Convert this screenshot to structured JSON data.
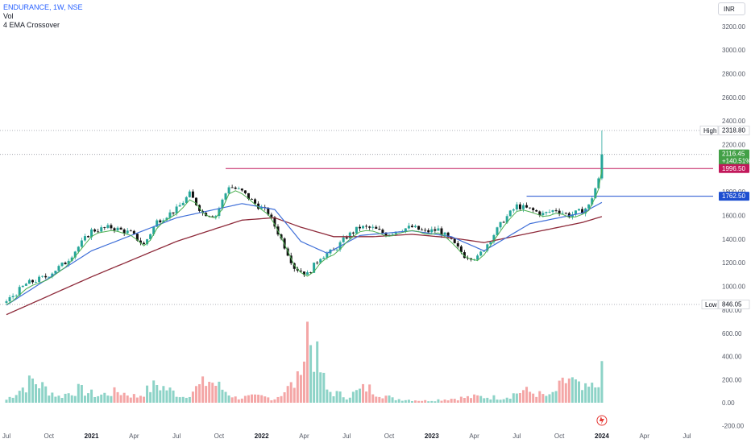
{
  "header": {
    "title": "ENDURANCE, 1W, NSE",
    "indicators": [
      "Vol",
      "4 EMA Crossover"
    ],
    "currency": "INR"
  },
  "colors": {
    "up": "#26a69a",
    "down": "#111111",
    "ema_short": "#4caf50",
    "ema_mid": "#3f6fd8",
    "ema_long": "#8e2a3a",
    "resistance": "#c2185b",
    "support": "#1e4fd0",
    "vol_up": "#8dd3c7",
    "vol_down": "#f4a6a6"
  },
  "chart_data": {
    "type": "candlestick",
    "y_ticks": [
      800,
      1000,
      1200,
      1400,
      1600,
      1800,
      2000,
      2200,
      2400,
      2600,
      2800,
      3000,
      3200
    ],
    "y_tick_labels": [
      "800.00",
      "1000.00",
      "1200.00",
      "1400.00",
      "1600.00",
      "1800.00",
      "2000.00",
      "2200.00",
      "2400.00",
      "2600.00",
      "2800.00",
      "3000.00",
      "3200.00"
    ],
    "vol_ticks": [
      -200,
      0,
      200,
      400,
      600
    ],
    "vol_tick_labels": [
      "-200.00",
      "0.00",
      "200.00",
      "400.00",
      "600.00"
    ],
    "x_labels": [
      {
        "week": 0,
        "label": "Jul"
      },
      {
        "week": 13,
        "label": "Oct"
      },
      {
        "week": 26,
        "label": "2021"
      },
      {
        "week": 39,
        "label": "Apr"
      },
      {
        "week": 52,
        "label": "Jul"
      },
      {
        "week": 65,
        "label": "Oct"
      },
      {
        "week": 78,
        "label": "2022"
      },
      {
        "week": 91,
        "label": "Apr"
      },
      {
        "week": 104,
        "label": "Jul"
      },
      {
        "week": 117,
        "label": "Oct"
      },
      {
        "week": 130,
        "label": "2023"
      },
      {
        "week": 143,
        "label": "Apr"
      },
      {
        "week": 156,
        "label": "Jul"
      },
      {
        "week": 169,
        "label": "Oct"
      },
      {
        "week": 182,
        "label": "2024"
      },
      {
        "week": 195,
        "label": "Apr"
      },
      {
        "week": 208,
        "label": "Jul"
      }
    ],
    "close_keypoints": [
      [
        0,
        870
      ],
      [
        6,
        1020
      ],
      [
        12,
        1080
      ],
      [
        18,
        1200
      ],
      [
        26,
        1470
      ],
      [
        32,
        1500
      ],
      [
        38,
        1450
      ],
      [
        42,
        1350
      ],
      [
        46,
        1550
      ],
      [
        52,
        1650
      ],
      [
        56,
        1780
      ],
      [
        60,
        1620
      ],
      [
        64,
        1600
      ],
      [
        68,
        1850
      ],
      [
        72,
        1800
      ],
      [
        76,
        1700
      ],
      [
        80,
        1620
      ],
      [
        84,
        1400
      ],
      [
        88,
        1160
      ],
      [
        92,
        1100
      ],
      [
        96,
        1250
      ],
      [
        100,
        1300
      ],
      [
        104,
        1420
      ],
      [
        108,
        1500
      ],
      [
        112,
        1490
      ],
      [
        116,
        1440
      ],
      [
        120,
        1480
      ],
      [
        124,
        1500
      ],
      [
        128,
        1460
      ],
      [
        132,
        1480
      ],
      [
        136,
        1380
      ],
      [
        140,
        1260
      ],
      [
        144,
        1240
      ],
      [
        148,
        1400
      ],
      [
        152,
        1560
      ],
      [
        156,
        1680
      ],
      [
        160,
        1650
      ],
      [
        164,
        1610
      ],
      [
        168,
        1650
      ],
      [
        172,
        1600
      ],
      [
        176,
        1640
      ],
      [
        178,
        1680
      ],
      [
        180,
        1830
      ],
      [
        181,
        1900
      ],
      [
        182,
        2116.45
      ]
    ],
    "ema_mid_keypoints": [
      [
        0,
        840
      ],
      [
        26,
        1300
      ],
      [
        52,
        1580
      ],
      [
        72,
        1700
      ],
      [
        82,
        1650
      ],
      [
        90,
        1380
      ],
      [
        98,
        1280
      ],
      [
        108,
        1430
      ],
      [
        124,
        1470
      ],
      [
        136,
        1420
      ],
      [
        146,
        1300
      ],
      [
        160,
        1530
      ],
      [
        176,
        1620
      ],
      [
        182,
        1710
      ]
    ],
    "ema_long_keypoints": [
      [
        0,
        760
      ],
      [
        26,
        1080
      ],
      [
        52,
        1380
      ],
      [
        72,
        1560
      ],
      [
        82,
        1580
      ],
      [
        90,
        1500
      ],
      [
        100,
        1420
      ],
      [
        112,
        1420
      ],
      [
        124,
        1440
      ],
      [
        136,
        1410
      ],
      [
        146,
        1370
      ],
      [
        160,
        1450
      ],
      [
        176,
        1540
      ],
      [
        182,
        1590
      ]
    ],
    "volume_keypoints": [
      [
        0,
        30
      ],
      [
        8,
        220
      ],
      [
        16,
        60
      ],
      [
        22,
        130
      ],
      [
        28,
        70
      ],
      [
        34,
        110
      ],
      [
        40,
        60
      ],
      [
        46,
        180
      ],
      [
        54,
        60
      ],
      [
        62,
        220
      ],
      [
        70,
        50
      ],
      [
        78,
        60
      ],
      [
        82,
        40
      ],
      [
        90,
        240
      ],
      [
        92,
        700
      ],
      [
        98,
        120
      ],
      [
        104,
        60
      ],
      [
        110,
        150
      ],
      [
        118,
        40
      ],
      [
        128,
        20
      ],
      [
        136,
        40
      ],
      [
        144,
        60
      ],
      [
        152,
        50
      ],
      [
        158,
        120
      ],
      [
        166,
        60
      ],
      [
        172,
        240
      ],
      [
        176,
        120
      ],
      [
        180,
        160
      ],
      [
        182,
        360
      ]
    ],
    "high": {
      "label": "High",
      "value": "2318.80",
      "y": 2318.8
    },
    "low": {
      "label": "Low",
      "value": "846.05",
      "y": 846.05
    },
    "last": {
      "price": "2116.45",
      "change": "+140.51%",
      "y": 2116.45
    },
    "resistance": {
      "value": "1996.50",
      "y": 1996.5,
      "from_week": 67
    },
    "support": {
      "value": "1762.50",
      "y": 1762.5,
      "from_week": 159
    }
  }
}
